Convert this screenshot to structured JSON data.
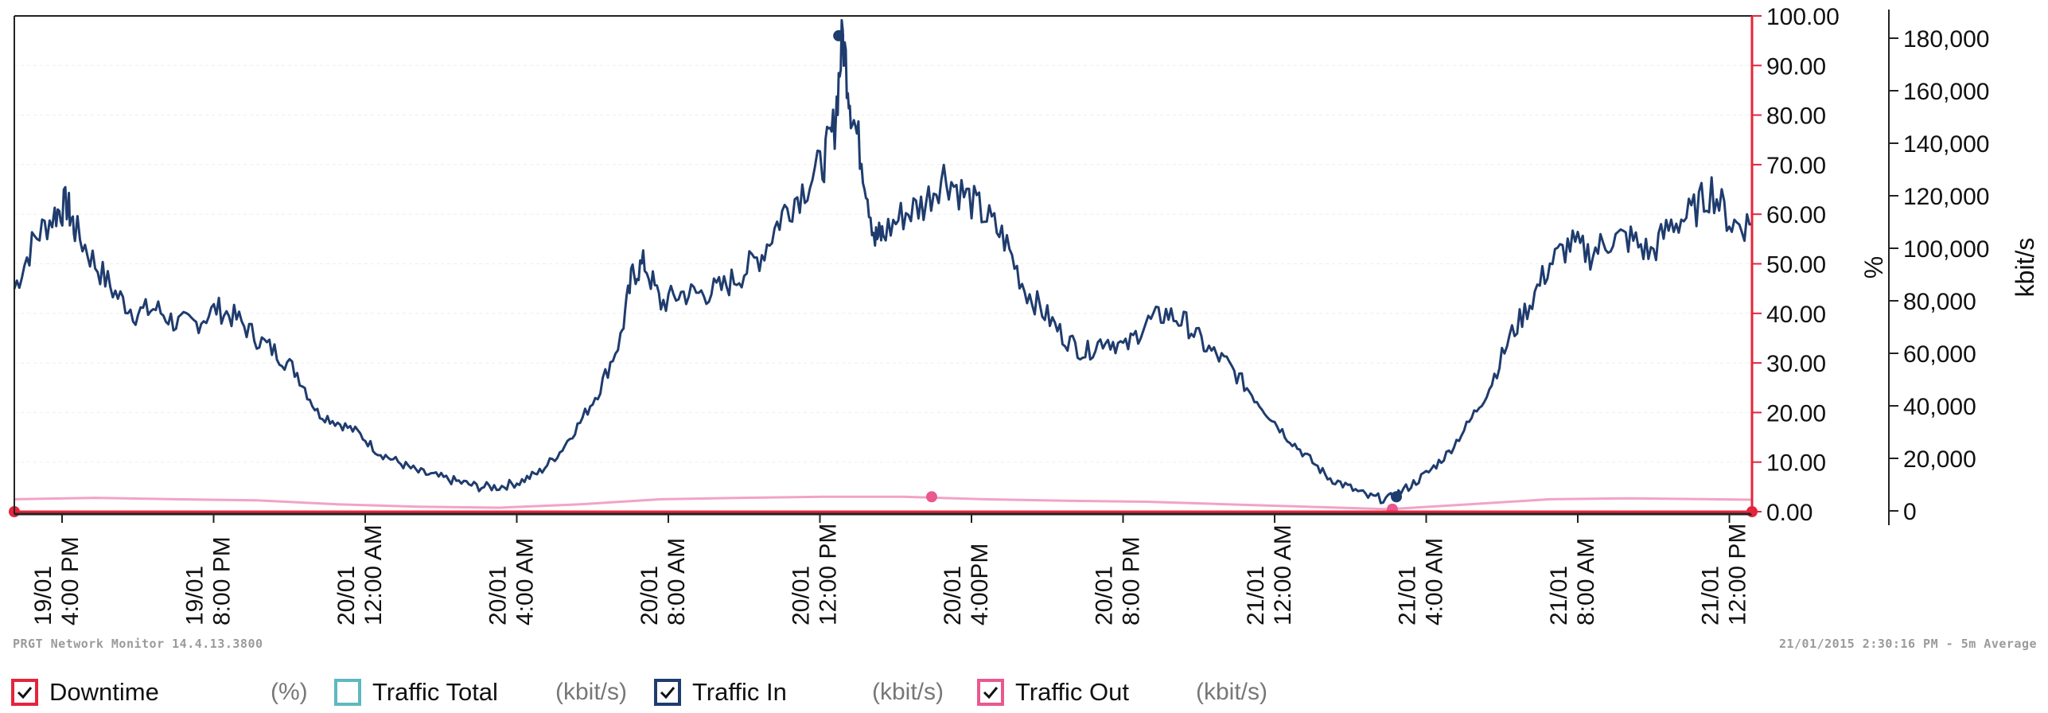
{
  "colors": {
    "downtime": "#e5243b",
    "traffic_total": "#5fb8bf",
    "traffic_in": "#1f3c6e",
    "traffic_out": "#e9588f",
    "traffic_out_line": "#f2a3c4",
    "axis_red": "#e5243b",
    "grid": "#eeeeee"
  },
  "footer": {
    "left": "PRGT Network Monitor 14.4.13.3800",
    "right": "21/01/2015 2:30:16 PM - 5m Average"
  },
  "legend": [
    {
      "label": "Downtime",
      "unit": "(%)",
      "color_key": "downtime",
      "checked": true
    },
    {
      "label": "Traffic Total",
      "unit": "(kbit/s)",
      "color_key": "traffic_total",
      "checked": false
    },
    {
      "label": "Traffic In",
      "unit": "(kbit/s)",
      "color_key": "traffic_in",
      "checked": true
    },
    {
      "label": "Traffic Out",
      "unit": "(kbit/s)",
      "color_key": "traffic_out",
      "checked": true
    }
  ],
  "chart_data": {
    "type": "line",
    "x_range_hours": "19/01 3:00 PM to 21/01 2:30 PM",
    "x_tick_labels": [
      [
        "19/01",
        "4:00 PM"
      ],
      [
        "19/01",
        "8:00 PM"
      ],
      [
        "20/01",
        "12:00 AM"
      ],
      [
        "20/01",
        "4:00 AM"
      ],
      [
        "20/01",
        "8:00 AM"
      ],
      [
        "20/01",
        "12:00 PM"
      ],
      [
        "20/01",
        "4:00PM"
      ],
      [
        "20/01",
        "8:00 PM"
      ],
      [
        "21/01",
        "12:00 AM"
      ],
      [
        "21/01",
        "4:00 AM"
      ],
      [
        "21/01",
        "8:00 AM"
      ],
      [
        "21/01",
        "12:00 PM"
      ]
    ],
    "y_left": {
      "label": "%",
      "ticks": [
        "100.00",
        "90.00",
        "80.00",
        "70.00",
        "60.00",
        "50.00",
        "40.00",
        "30.00",
        "20.00",
        "10.00",
        "0.00"
      ],
      "range": [
        0,
        100
      ]
    },
    "y_right": {
      "label": "kbit/s",
      "ticks": [
        "180,000",
        "160,000",
        "140,000",
        "120,000",
        "100,000",
        "80,000",
        "60,000",
        "40,000",
        "20,000",
        "0"
      ],
      "range": [
        0,
        180000
      ]
    },
    "grid": true,
    "series": [
      {
        "name": "Traffic In",
        "unit": "kbit/s",
        "axis": "left_percent_scale",
        "points": [
          [
            0,
            45
          ],
          [
            0.5,
            55
          ],
          [
            1,
            60
          ],
          [
            1.3,
            62
          ],
          [
            1.5,
            57
          ],
          [
            2,
            50
          ],
          [
            2.5,
            44
          ],
          [
            3,
            40
          ],
          [
            3.5,
            41
          ],
          [
            4,
            38
          ],
          [
            4.5,
            38
          ],
          [
            5,
            41
          ],
          [
            5.5,
            39
          ],
          [
            6,
            35
          ],
          [
            6.5,
            32
          ],
          [
            7,
            28
          ],
          [
            7.5,
            20
          ],
          [
            8,
            18
          ],
          [
            8.5,
            16
          ],
          [
            9,
            12
          ],
          [
            9.5,
            10
          ],
          [
            10,
            8
          ],
          [
            10.5,
            7
          ],
          [
            11,
            6
          ],
          [
            11.5,
            5
          ],
          [
            12,
            5
          ],
          [
            12.5,
            6
          ],
          [
            13,
            8
          ],
          [
            13.5,
            12
          ],
          [
            14,
            18
          ],
          [
            14.5,
            25
          ],
          [
            15,
            35
          ],
          [
            15.3,
            48
          ],
          [
            15.6,
            50
          ],
          [
            16,
            42
          ],
          [
            16.5,
            44
          ],
          [
            17,
            44
          ],
          [
            17.5,
            45
          ],
          [
            18,
            48
          ],
          [
            18.5,
            52
          ],
          [
            19,
            60
          ],
          [
            19.5,
            65
          ],
          [
            20,
            70
          ],
          [
            20.3,
            78
          ],
          [
            20.5,
            96
          ],
          [
            20.7,
            82
          ],
          [
            21,
            70
          ],
          [
            21.3,
            55
          ],
          [
            21.5,
            56
          ],
          [
            22,
            60
          ],
          [
            22.5,
            62
          ],
          [
            23,
            68
          ],
          [
            23.5,
            64
          ],
          [
            24,
            60
          ],
          [
            24.5,
            55
          ],
          [
            25,
            45
          ],
          [
            25.5,
            40
          ],
          [
            26,
            35
          ],
          [
            26.5,
            32
          ],
          [
            27,
            35
          ],
          [
            27.5,
            33
          ],
          [
            28,
            38
          ],
          [
            28.5,
            40
          ],
          [
            29,
            38
          ],
          [
            29.5,
            33
          ],
          [
            30,
            30
          ],
          [
            30.5,
            25
          ],
          [
            31,
            20
          ],
          [
            31.5,
            15
          ],
          [
            32,
            11
          ],
          [
            32.5,
            7
          ],
          [
            33,
            5
          ],
          [
            33.5,
            3
          ],
          [
            34,
            2.5
          ],
          [
            34.5,
            5
          ],
          [
            35,
            8
          ],
          [
            35.5,
            12
          ],
          [
            36,
            18
          ],
          [
            36.5,
            25
          ],
          [
            37,
            35
          ],
          [
            37.5,
            42
          ],
          [
            38,
            50
          ],
          [
            38.5,
            54
          ],
          [
            39,
            52
          ],
          [
            39.5,
            55
          ],
          [
            40,
            55
          ],
          [
            40.5,
            52
          ],
          [
            41,
            58
          ],
          [
            41.5,
            60
          ],
          [
            42,
            65
          ],
          [
            42.5,
            58
          ],
          [
            43,
            58
          ]
        ],
        "markers": [
          {
            "x": 20.4,
            "y": 96
          },
          {
            "x": 34.2,
            "y": 3
          }
        ]
      },
      {
        "name": "Traffic Out",
        "unit": "kbit/s",
        "axis": "left_percent_scale",
        "points": [
          [
            0,
            2.5
          ],
          [
            2,
            2.8
          ],
          [
            4,
            2.5
          ],
          [
            6,
            2.3
          ],
          [
            8,
            1.5
          ],
          [
            10,
            1.0
          ],
          [
            12,
            0.8
          ],
          [
            14,
            1.5
          ],
          [
            16,
            2.5
          ],
          [
            18,
            2.8
          ],
          [
            20,
            3.0
          ],
          [
            22,
            3.0
          ],
          [
            24,
            2.5
          ],
          [
            26,
            2.2
          ],
          [
            28,
            2.0
          ],
          [
            30,
            1.5
          ],
          [
            32,
            1.0
          ],
          [
            34,
            0.5
          ],
          [
            36,
            1.5
          ],
          [
            38,
            2.5
          ],
          [
            40,
            2.7
          ],
          [
            42,
            2.5
          ],
          [
            43,
            2.4
          ]
        ],
        "markers": [
          {
            "x": 22.7,
            "y": 3.0
          },
          {
            "x": 34.1,
            "y": 0.5
          }
        ]
      },
      {
        "name": "Downtime",
        "unit": "%",
        "axis": "left",
        "points": [
          [
            0,
            0
          ],
          [
            43,
            0
          ]
        ],
        "markers": [
          {
            "x": 0,
            "y": 0
          },
          {
            "x": 43,
            "y": 0
          }
        ]
      }
    ]
  }
}
